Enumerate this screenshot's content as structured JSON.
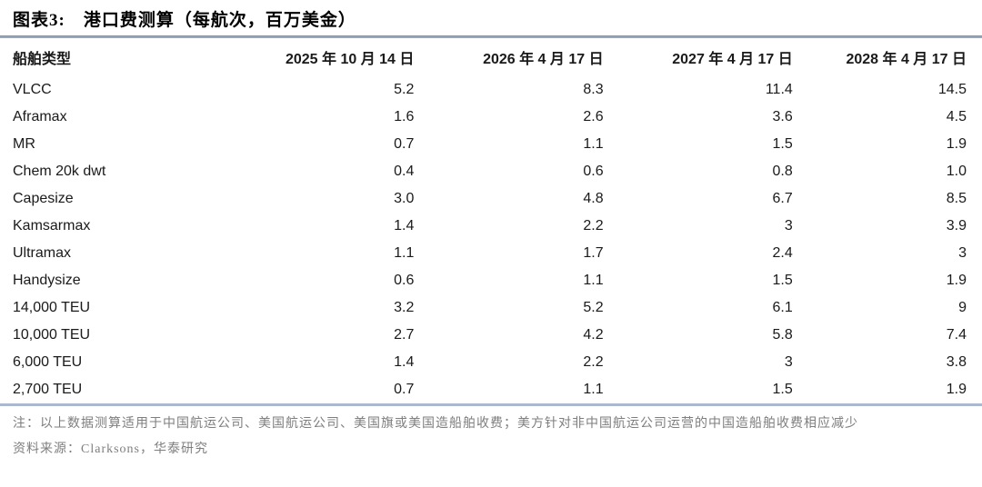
{
  "figure": {
    "label": "图表3:",
    "title": "港口费测算（每航次，百万美金）"
  },
  "table": {
    "columns": [
      "船舶类型",
      "2025 年 10 月 14 日",
      "2026 年 4 月 17 日",
      "2027 年 4 月 17 日",
      "2028 年 4 月 17 日"
    ],
    "rows": [
      {
        "type": "VLCC",
        "values": [
          "5.2",
          "8.3",
          "11.4",
          "14.5"
        ]
      },
      {
        "type": "Aframax",
        "values": [
          "1.6",
          "2.6",
          "3.6",
          "4.5"
        ]
      },
      {
        "type": "MR",
        "values": [
          "0.7",
          "1.1",
          "1.5",
          "1.9"
        ]
      },
      {
        "type": "Chem 20k dwt",
        "values": [
          "0.4",
          "0.6",
          "0.8",
          "1.0"
        ]
      },
      {
        "type": "Capesize",
        "values": [
          "3.0",
          "4.8",
          "6.7",
          "8.5"
        ]
      },
      {
        "type": "Kamsarmax",
        "values": [
          "1.4",
          "2.2",
          "3",
          "3.9"
        ]
      },
      {
        "type": "Ultramax",
        "values": [
          "1.1",
          "1.7",
          "2.4",
          "3"
        ]
      },
      {
        "type": "Handysize",
        "values": [
          "0.6",
          "1.1",
          "1.5",
          "1.9"
        ]
      },
      {
        "type": "14,000 TEU",
        "values": [
          "3.2",
          "5.2",
          "6.1",
          "9"
        ]
      },
      {
        "type": "10,000 TEU",
        "values": [
          "2.7",
          "4.2",
          "5.8",
          "7.4"
        ]
      },
      {
        "type": "6,000 TEU",
        "values": [
          "1.4",
          "2.2",
          "3",
          "3.8"
        ]
      },
      {
        "type": "2,700 TEU",
        "values": [
          "0.7",
          "1.1",
          "1.5",
          "1.9"
        ]
      }
    ]
  },
  "notes": {
    "note": "注：以上数据测算适用于中国航运公司、美国航运公司、美国旗或美国造船舶收费；美方针对非中国航运公司运营的中国造船舶收费相应减少",
    "source": "资料来源：Clarksons，华泰研究"
  },
  "colors": {
    "rule": "#93a7bf",
    "table_bottom_rule": "#aab9cd",
    "note_text": "#7e7e7e",
    "body_text": "#1a1a1a"
  },
  "chart_data": {
    "type": "table",
    "title": "港口费测算（每航次，百万美金）",
    "row_header": "船舶类型",
    "categories": [
      "VLCC",
      "Aframax",
      "MR",
      "Chem 20k dwt",
      "Capesize",
      "Kamsarmax",
      "Ultramax",
      "Handysize",
      "14,000 TEU",
      "10,000 TEU",
      "6,000 TEU",
      "2,700 TEU"
    ],
    "series": [
      {
        "name": "2025 年 10 月 14 日",
        "values": [
          5.2,
          1.6,
          0.7,
          0.4,
          3.0,
          1.4,
          1.1,
          0.6,
          3.2,
          2.7,
          1.4,
          0.7
        ]
      },
      {
        "name": "2026 年 4 月 17 日",
        "values": [
          8.3,
          2.6,
          1.1,
          0.6,
          4.8,
          2.2,
          1.7,
          1.1,
          5.2,
          4.2,
          2.2,
          1.1
        ]
      },
      {
        "name": "2027 年 4 月 17 日",
        "values": [
          11.4,
          3.6,
          1.5,
          0.8,
          6.7,
          3,
          2.4,
          1.5,
          6.1,
          5.8,
          3,
          1.5
        ]
      },
      {
        "name": "2028 年 4 月 17 日",
        "values": [
          14.5,
          4.5,
          1.9,
          1.0,
          8.5,
          3.9,
          3,
          1.9,
          9,
          7.4,
          3.8,
          1.9
        ]
      }
    ]
  }
}
